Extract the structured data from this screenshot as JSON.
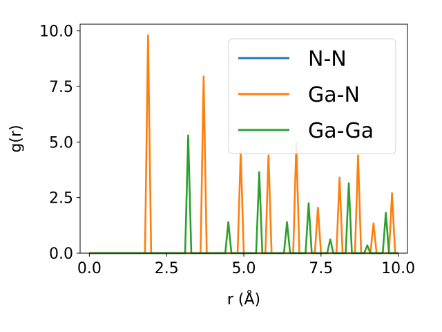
{
  "chart_data": {
    "type": "line",
    "xlabel": "r (Å)",
    "ylabel": "g(r)",
    "xlim": [
      -0.3,
      10.3
    ],
    "ylim": [
      0,
      10.3
    ],
    "xticks": [
      0.0,
      2.5,
      5.0,
      7.5,
      10.0
    ],
    "xtick_labels": [
      "0.0",
      "2.5",
      "5.0",
      "7.5",
      "10.0"
    ],
    "yticks": [
      0.0,
      2.5,
      5.0,
      7.5,
      10.0
    ],
    "ytick_labels": [
      "0.0",
      "2.5",
      "5.0",
      "7.5",
      "10.0"
    ],
    "grid": false,
    "legend_position": "upper right",
    "series": [
      {
        "name": "N-N",
        "color": "#1f77b4",
        "x": [
          0.0,
          10.0
        ],
        "y": [
          0.0,
          0.0
        ]
      },
      {
        "name": "Ga-N",
        "color": "#ff7f0e",
        "x": [
          0.0,
          1.8,
          1.9,
          2.0,
          3.6,
          3.7,
          3.8,
          4.8,
          4.9,
          5.0,
          5.7,
          5.8,
          5.9,
          6.6,
          6.7,
          6.8,
          7.3,
          7.4,
          7.5,
          8.0,
          8.1,
          8.2,
          8.6,
          8.7,
          8.8,
          9.1,
          9.2,
          9.3,
          9.7,
          9.8,
          9.9,
          10.0
        ],
        "y": [
          0.0,
          0.0,
          9.8,
          0.0,
          0.0,
          7.95,
          0.0,
          0.0,
          4.55,
          0.0,
          0.0,
          4.4,
          0.0,
          0.0,
          4.95,
          0.0,
          0.0,
          2.05,
          0.0,
          0.0,
          3.4,
          0.0,
          0.0,
          4.4,
          0.0,
          0.0,
          1.35,
          0.0,
          0.0,
          2.7,
          0.0,
          0.0
        ]
      },
      {
        "name": "Ga-Ga",
        "color": "#2ca02c",
        "x": [
          0.0,
          3.1,
          3.2,
          3.3,
          4.4,
          4.5,
          4.6,
          5.4,
          5.5,
          5.6,
          6.3,
          6.4,
          6.5,
          7.0,
          7.1,
          7.2,
          7.7,
          7.8,
          7.9,
          8.3,
          8.4,
          8.5,
          8.9,
          9.0,
          9.1,
          9.5,
          9.6,
          9.7,
          10.0
        ],
        "y": [
          0.0,
          0.0,
          5.3,
          0.0,
          0.0,
          1.4,
          0.0,
          0.0,
          3.65,
          0.0,
          0.0,
          1.4,
          0.0,
          0.0,
          2.25,
          0.0,
          0.0,
          0.62,
          0.0,
          0.0,
          3.15,
          0.0,
          0.0,
          0.35,
          0.0,
          0.0,
          1.82,
          0.0,
          0.0
        ]
      }
    ]
  }
}
